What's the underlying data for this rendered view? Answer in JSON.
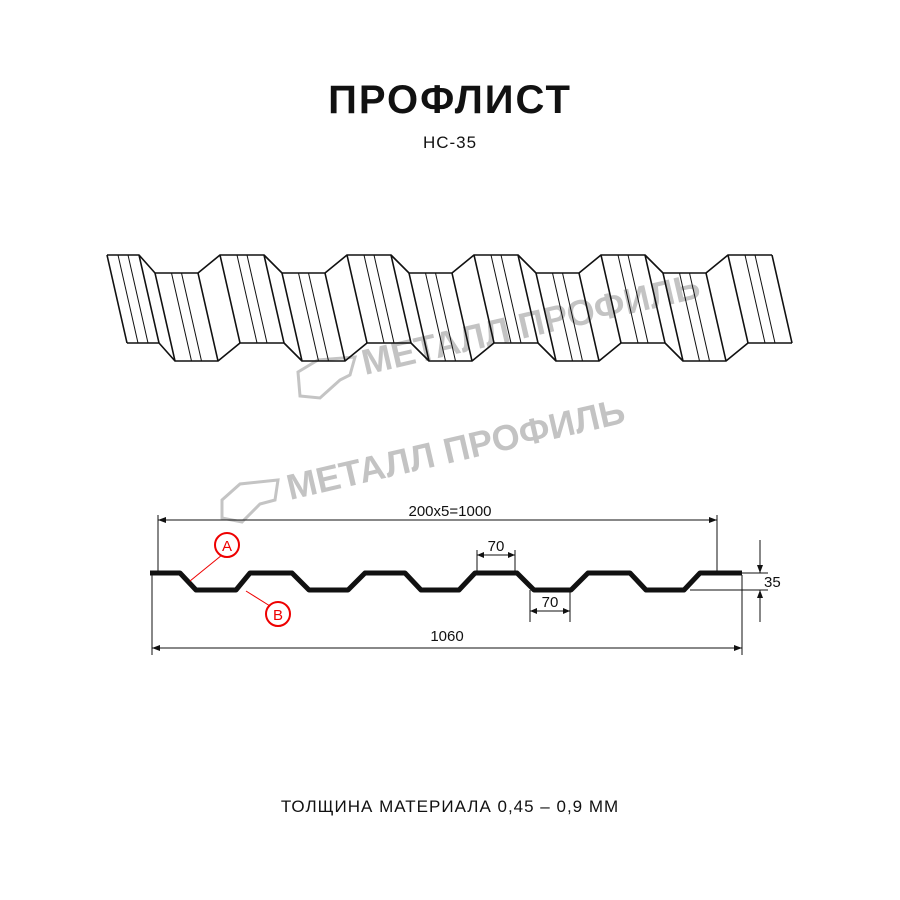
{
  "title": "ПРОФЛИСТ",
  "model": "НС-35",
  "thickness_note": "ТОЛЩИНА МАТЕРИАЛА 0,45 – 0,9 ММ",
  "watermark": "МЕТАЛЛ ПРОФИЛЬ",
  "dimensions": {
    "pitch_total": "200x5=1000",
    "overall_width": "1060",
    "height": "35",
    "top_flange": "70",
    "bottom_flange": "70"
  },
  "markers": {
    "a": "A",
    "b": "B"
  },
  "colors": {
    "line": "#111111",
    "marker": "#e00000",
    "watermark": "#b9b9b9"
  }
}
